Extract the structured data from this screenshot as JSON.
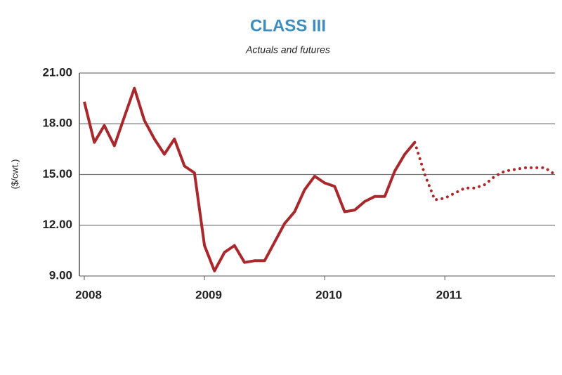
{
  "chart_data": {
    "type": "line",
    "title": "CLASS III",
    "subtitle": "Actuals and futures",
    "y_label": "($/cwt.)",
    "title_color": "#3b8dc2",
    "categories": [
      "2008",
      null,
      null,
      null,
      null,
      null,
      null,
      null,
      null,
      null,
      null,
      null,
      "2009",
      null,
      null,
      null,
      null,
      null,
      null,
      null,
      null,
      null,
      null,
      null,
      "2010",
      null,
      null,
      null,
      null,
      null,
      null,
      null,
      null,
      null,
      null,
      null,
      "2011",
      null,
      null,
      null,
      null,
      null,
      null,
      null,
      null,
      null,
      null,
      null
    ],
    "series": [
      {
        "color": "#a8282c",
        "line_style": "solid",
        "values": [
          19.3,
          16.9,
          17.9,
          16.7,
          18.4,
          20.1,
          18.2,
          17.1,
          16.2,
          17.1,
          15.5,
          15.1,
          10.8,
          9.3,
          10.4,
          10.8,
          9.8,
          9.9,
          9.9,
          11.0,
          12.1,
          12.8,
          14.1,
          14.9,
          14.5,
          14.3,
          12.8,
          12.9,
          13.4,
          13.7,
          13.7,
          15.2,
          16.2,
          16.9,
          null,
          null,
          null,
          null,
          null,
          null,
          null,
          null,
          null,
          null,
          null,
          null,
          null,
          null
        ]
      },
      {
        "color": "#a8282c",
        "line_style": "dotted",
        "values": [
          null,
          null,
          null,
          null,
          null,
          null,
          null,
          null,
          null,
          null,
          null,
          null,
          null,
          null,
          null,
          null,
          null,
          null,
          null,
          null,
          null,
          null,
          null,
          null,
          null,
          null,
          null,
          null,
          null,
          null,
          null,
          null,
          null,
          16.9,
          15.0,
          13.5,
          13.6,
          13.9,
          14.2,
          14.2,
          14.4,
          14.9,
          15.2,
          15.3,
          15.4,
          15.4,
          15.4,
          15.0
        ]
      }
    ],
    "ylim": [
      9,
      21
    ],
    "yticks": [
      {
        "value": 9,
        "label": "9.00"
      },
      {
        "value": 12,
        "label": "12.00"
      },
      {
        "value": 15,
        "label": "15.00"
      },
      {
        "value": 18,
        "label": "18.00"
      },
      {
        "value": 21,
        "label": "21.00"
      }
    ],
    "grid": true
  }
}
